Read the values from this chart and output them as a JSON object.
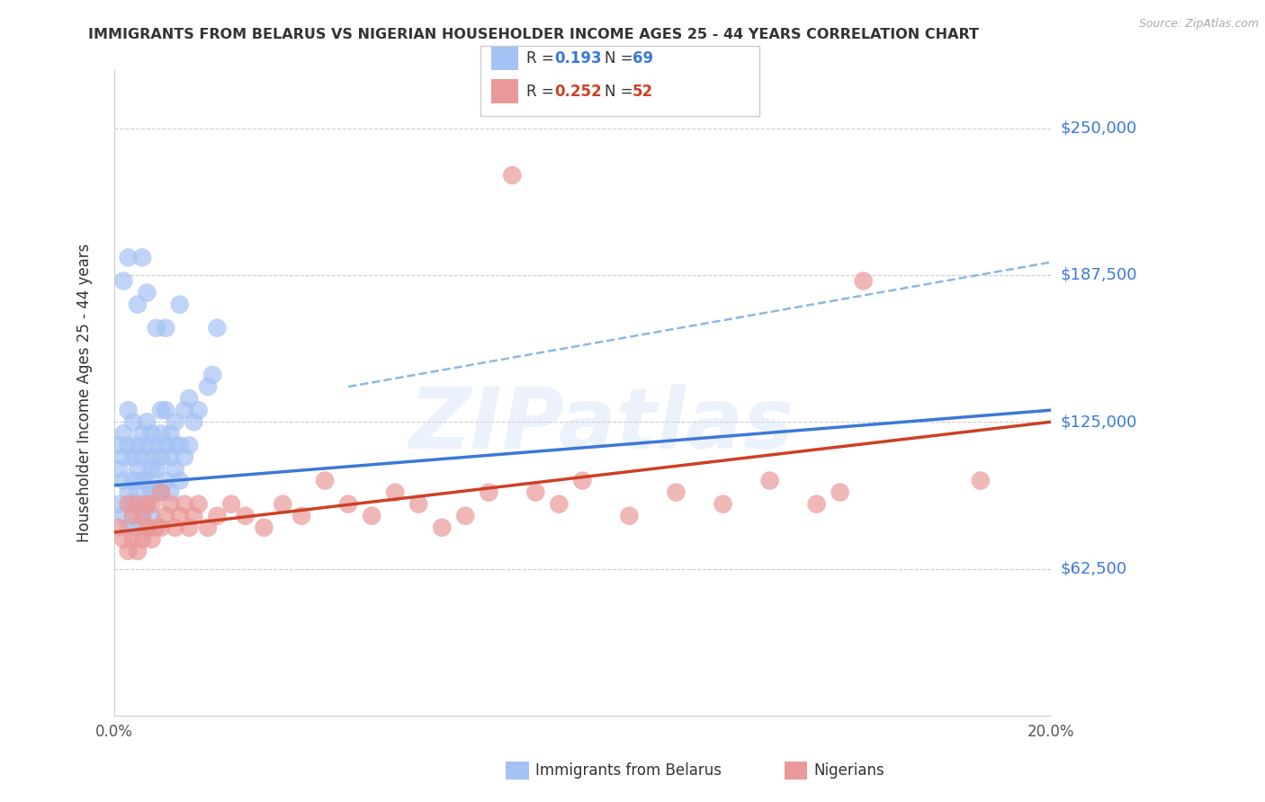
{
  "title": "IMMIGRANTS FROM BELARUS VS NIGERIAN HOUSEHOLDER INCOME AGES 25 - 44 YEARS CORRELATION CHART",
  "source": "Source: ZipAtlas.com",
  "ylabel_label": "Householder Income Ages 25 - 44 years",
  "xlim": [
    0.0,
    0.2
  ],
  "ylim": [
    0,
    275000
  ],
  "yticks": [
    0,
    62500,
    125000,
    187500,
    250000
  ],
  "ytick_labels": [
    "",
    "$62,500",
    "$125,000",
    "$187,500",
    "$250,000"
  ],
  "xticks": [
    0.0,
    0.04,
    0.08,
    0.12,
    0.16,
    0.2
  ],
  "xtick_labels": [
    "0.0%",
    "",
    "",
    "",
    "",
    "20.0%"
  ],
  "color_blue": "#a4c2f4",
  "color_pink": "#ea9999",
  "color_line_blue": "#3c78d8",
  "color_line_pink": "#cc4125",
  "color_dashed": "#6fa8dc",
  "color_axis_labels": "#3c78d8",
  "grid_color": "#cccccc",
  "belarus_x": [
    0.001,
    0.001,
    0.001,
    0.002,
    0.002,
    0.002,
    0.002,
    0.003,
    0.003,
    0.003,
    0.003,
    0.004,
    0.004,
    0.004,
    0.004,
    0.005,
    0.005,
    0.005,
    0.005,
    0.005,
    0.006,
    0.006,
    0.006,
    0.006,
    0.007,
    0.007,
    0.007,
    0.007,
    0.007,
    0.008,
    0.008,
    0.008,
    0.008,
    0.008,
    0.009,
    0.009,
    0.009,
    0.01,
    0.01,
    0.01,
    0.01,
    0.011,
    0.011,
    0.011,
    0.012,
    0.012,
    0.012,
    0.013,
    0.013,
    0.013,
    0.014,
    0.014,
    0.015,
    0.015,
    0.016,
    0.016,
    0.017,
    0.018,
    0.02,
    0.021,
    0.002,
    0.003,
    0.005,
    0.006,
    0.007,
    0.009,
    0.011,
    0.014,
    0.022
  ],
  "belarus_y": [
    105000,
    115000,
    90000,
    120000,
    100000,
    85000,
    110000,
    130000,
    95000,
    115000,
    80000,
    110000,
    125000,
    90000,
    100000,
    105000,
    90000,
    115000,
    80000,
    95000,
    120000,
    100000,
    85000,
    110000,
    115000,
    100000,
    90000,
    125000,
    80000,
    110000,
    95000,
    85000,
    105000,
    120000,
    115000,
    95000,
    105000,
    130000,
    110000,
    95000,
    120000,
    115000,
    100000,
    130000,
    110000,
    95000,
    120000,
    125000,
    105000,
    115000,
    100000,
    115000,
    130000,
    110000,
    135000,
    115000,
    125000,
    130000,
    140000,
    145000,
    185000,
    195000,
    175000,
    195000,
    180000,
    165000,
    165000,
    175000,
    165000
  ],
  "nigerian_x": [
    0.001,
    0.002,
    0.003,
    0.003,
    0.004,
    0.004,
    0.005,
    0.005,
    0.006,
    0.006,
    0.007,
    0.007,
    0.008,
    0.008,
    0.009,
    0.01,
    0.01,
    0.011,
    0.012,
    0.013,
    0.014,
    0.015,
    0.016,
    0.017,
    0.018,
    0.02,
    0.022,
    0.025,
    0.028,
    0.032,
    0.036,
    0.04,
    0.045,
    0.05,
    0.055,
    0.06,
    0.065,
    0.07,
    0.075,
    0.08,
    0.085,
    0.09,
    0.095,
    0.1,
    0.11,
    0.12,
    0.13,
    0.14,
    0.15,
    0.155,
    0.16,
    0.185
  ],
  "nigerian_y": [
    80000,
    75000,
    90000,
    70000,
    85000,
    75000,
    90000,
    70000,
    85000,
    75000,
    90000,
    80000,
    75000,
    90000,
    80000,
    95000,
    80000,
    85000,
    90000,
    80000,
    85000,
    90000,
    80000,
    85000,
    90000,
    80000,
    85000,
    90000,
    85000,
    80000,
    90000,
    85000,
    100000,
    90000,
    85000,
    95000,
    90000,
    80000,
    85000,
    95000,
    230000,
    95000,
    90000,
    100000,
    85000,
    95000,
    90000,
    100000,
    90000,
    95000,
    185000,
    100000
  ],
  "blue_line_x0": 0.0,
  "blue_line_x1": 0.2,
  "blue_line_y0": 98000,
  "blue_line_y1": 130000,
  "pink_line_x0": 0.0,
  "pink_line_x1": 0.2,
  "pink_line_y0": 78000,
  "pink_line_y1": 125000,
  "dash_line_x0": 0.05,
  "dash_line_x1": 0.2,
  "dash_line_y0": 140000,
  "dash_line_y1": 193000
}
